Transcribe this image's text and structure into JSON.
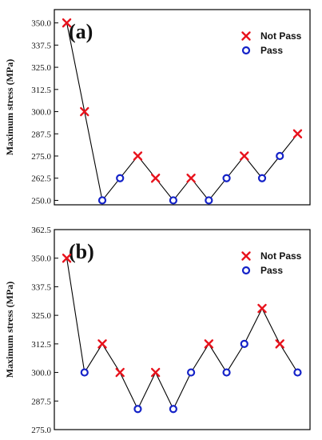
{
  "chart_data": [
    {
      "type": "line",
      "panel_label": "(a)",
      "ylabel": "Maximum stress (MPa)",
      "yticks": [
        "250.0",
        "262.5",
        "275.0",
        "287.5",
        "300.0",
        "312.5",
        "325.0",
        "337.5",
        "350.0"
      ],
      "ylim": [
        247.5,
        357.5
      ],
      "xlim": [
        0.3,
        14.7
      ],
      "legend": {
        "position": "top-right",
        "entries": [
          {
            "label": "Not Pass",
            "marker": "x",
            "color": "#e8121c"
          },
          {
            "label": "Pass",
            "marker": "o",
            "color": "#1422c8"
          }
        ]
      },
      "x": [
        1,
        2,
        3,
        4,
        5,
        6,
        7,
        8,
        9,
        10,
        11,
        12,
        13,
        14
      ],
      "values": [
        350.0,
        300.0,
        250.0,
        262.5,
        275.0,
        262.5,
        250.0,
        262.5,
        250.0,
        262.5,
        275.0,
        262.5,
        275.0,
        287.5
      ],
      "status": [
        "fail",
        "fail",
        "pass",
        "pass",
        "fail",
        "fail",
        "pass",
        "fail",
        "pass",
        "pass",
        "fail",
        "pass",
        "pass",
        "fail"
      ]
    },
    {
      "type": "line",
      "panel_label": "(b)",
      "ylabel": "Maximum stress (MPa)",
      "yticks": [
        "275.0",
        "287.5",
        "300.0",
        "312.5",
        "325.0",
        "337.5",
        "350.0",
        "362.5"
      ],
      "ylim": [
        275.0,
        362.5
      ],
      "xlim": [
        0.3,
        14.7
      ],
      "legend": {
        "position": "top-right",
        "entries": [
          {
            "label": "Not Pass",
            "marker": "x",
            "color": "#e8121c"
          },
          {
            "label": "Pass",
            "marker": "o",
            "color": "#1422c8"
          }
        ]
      },
      "x": [
        1,
        2,
        3,
        4,
        5,
        6,
        7,
        8,
        9,
        10,
        11,
        12,
        13,
        14
      ],
      "values": [
        350.0,
        300.0,
        312.5,
        300.0,
        284.0,
        300.0,
        284.0,
        300.0,
        312.5,
        300.0,
        312.5,
        328.0,
        312.5,
        300.0
      ],
      "status": [
        "fail",
        "pass",
        "fail",
        "fail",
        "pass",
        "fail",
        "pass",
        "pass",
        "fail",
        "pass",
        "pass",
        "fail",
        "fail",
        "pass"
      ]
    }
  ]
}
